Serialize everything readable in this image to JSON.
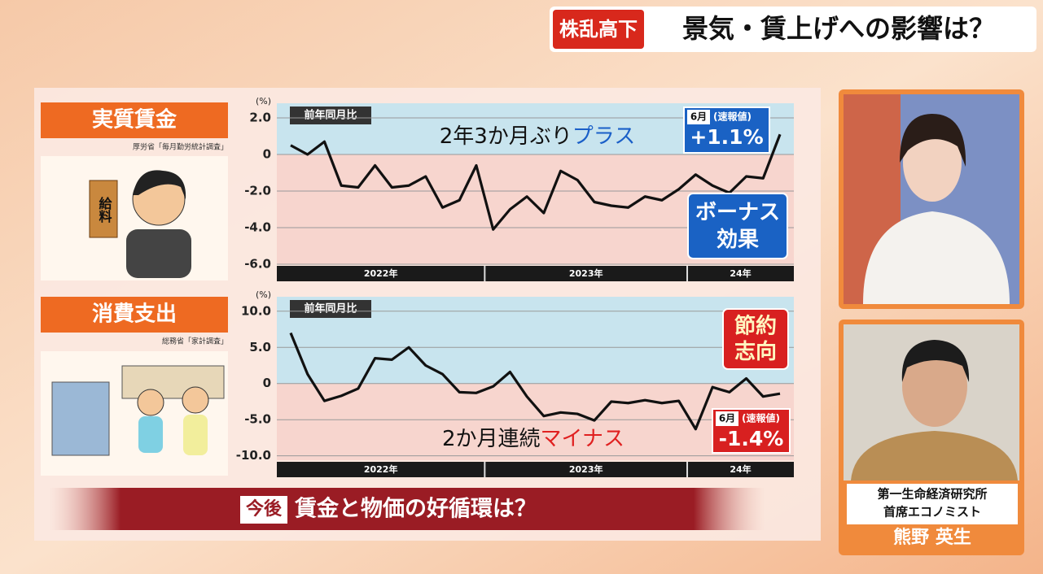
{
  "header": {
    "tag": "株乱高下",
    "title": "景気・賃上げへの影響は？"
  },
  "chart_data": [
    {
      "type": "line",
      "label": "実質賃金",
      "source": "厚労省「毎月勤労統計調査」",
      "unit": "(%)",
      "measure": "前年同月比",
      "annotation": [
        "2年3か月ぶり",
        "プラス"
      ],
      "callout": {
        "month": "6月",
        "note": "(速報値)",
        "value": "+1.1%"
      },
      "box": [
        "ボーナス",
        "効果"
      ],
      "categories": [
        "2022年",
        null,
        null,
        null,
        null,
        null,
        null,
        null,
        null,
        null,
        null,
        null,
        "2023年",
        null,
        null,
        null,
        null,
        null,
        null,
        null,
        null,
        null,
        null,
        null,
        "24年",
        null,
        null,
        null,
        null,
        null
      ],
      "values": [
        0.5,
        0.0,
        0.7,
        -1.7,
        -1.8,
        -0.6,
        -1.8,
        -1.7,
        -1.2,
        -2.9,
        -2.5,
        -0.6,
        -4.1,
        -3.0,
        -2.3,
        -3.2,
        -0.9,
        -1.4,
        -2.6,
        -2.8,
        -2.9,
        -2.3,
        -2.5,
        -1.9,
        -1.1,
        -1.7,
        -2.1,
        -1.2,
        -1.3,
        1.1
      ],
      "color": "#111111",
      "ylim": [
        -6,
        2.8
      ],
      "yticks": [
        {
          "value": 2,
          "label": "2.0"
        },
        0,
        {
          "value": -2,
          "label": "-2.0"
        },
        {
          "value": -4,
          "label": "-4.0"
        },
        {
          "value": -6,
          "label": "-6.0"
        }
      ],
      "grid": true
    },
    {
      "type": "line",
      "label": "消費支出",
      "source": "総務省「家計調査」",
      "unit": "(%)",
      "measure": "前年同月比",
      "annotation": [
        "2か月連続",
        "マイナス"
      ],
      "callout": {
        "month": "6月",
        "note": "(速報値)",
        "value": "-1.4%"
      },
      "box": [
        "節約",
        "志向"
      ],
      "categories": [
        "2022年",
        null,
        null,
        null,
        null,
        null,
        null,
        null,
        null,
        null,
        null,
        null,
        "2023年",
        null,
        null,
        null,
        null,
        null,
        null,
        null,
        null,
        null,
        null,
        null,
        "24年",
        null,
        null,
        null,
        null,
        null
      ],
      "values": [
        7.0,
        1.3,
        -2.4,
        -1.7,
        -0.7,
        3.5,
        3.3,
        5.0,
        2.5,
        1.3,
        -1.2,
        -1.3,
        -0.4,
        1.6,
        -1.8,
        -4.5,
        -4.0,
        -4.2,
        -5.1,
        -2.5,
        -2.7,
        -2.3,
        -2.7,
        -2.4,
        -6.3,
        -0.5,
        -1.2,
        0.7,
        -1.8,
        -1.4
      ],
      "color": "#111111",
      "ylim": [
        -10.6,
        12
      ],
      "yticks": [
        {
          "value": 10,
          "label": "10.0"
        },
        {
          "value": 5,
          "label": "5.0"
        },
        0,
        {
          "value": -5,
          "label": "-5.0"
        },
        {
          "value": -10,
          "label": "-10.0"
        }
      ],
      "grid": true
    }
  ],
  "banner": {
    "tag": "今後",
    "text": "賃金と物価の好循環は？"
  },
  "guest": {
    "org": "第一生命経済研究所",
    "role": "首席エコノミスト",
    "name": "熊野 英生"
  },
  "illustration": {
    "envelope": "給料"
  }
}
